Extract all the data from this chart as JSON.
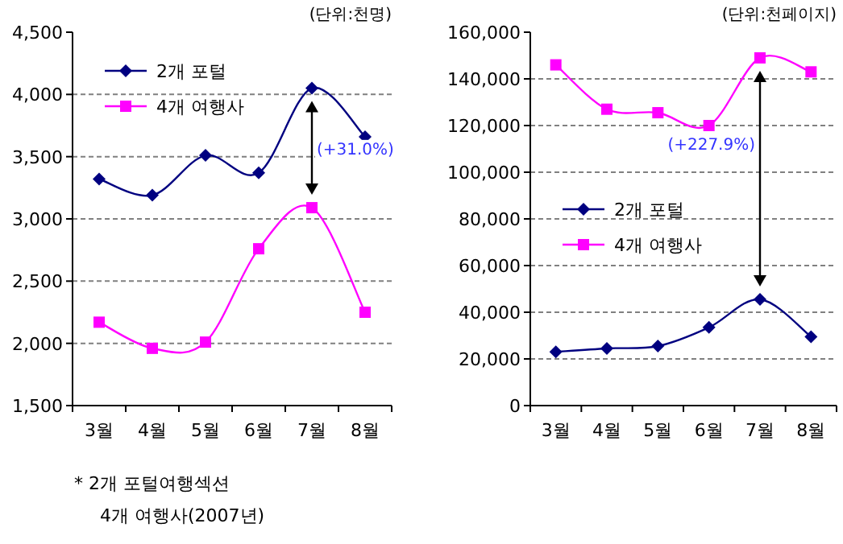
{
  "chart_data": [
    {
      "type": "line",
      "subtitle": "(단위:천명)",
      "categories": [
        "3월",
        "4월",
        "5월",
        "6월",
        "7월",
        "8월"
      ],
      "series": [
        {
          "name": "2개 포털",
          "color": "#000080",
          "marker": "diamond",
          "values": [
            3320,
            3190,
            3510,
            3370,
            4050,
            3660
          ]
        },
        {
          "name": "4개 여행사",
          "color": "#ff00ff",
          "marker": "square",
          "values": [
            2170,
            1960,
            2010,
            2760,
            3090,
            2250
          ]
        }
      ],
      "ylim": [
        1500,
        4500
      ],
      "yticks": [
        {
          "value": 1500,
          "label": "1,500"
        },
        {
          "value": 2000,
          "label": "2,000"
        },
        {
          "value": 2500,
          "label": "2,500"
        },
        {
          "value": 3000,
          "label": "3,000"
        },
        {
          "value": 3500,
          "label": "3,500"
        },
        {
          "value": 4000,
          "label": "4,000"
        },
        {
          "value": 4500,
          "label": "4,500"
        }
      ],
      "grid": "y",
      "legend": "top left",
      "annotations": [
        "(+31.0%)",
        "* 2개 포털여행섹션",
        "4개 여행사(2007년)"
      ]
    },
    {
      "type": "line",
      "subtitle": "(단위:천페이지)",
      "categories": [
        "3월",
        "4월",
        "5월",
        "6월",
        "7월",
        "8월"
      ],
      "series": [
        {
          "name": "2개 포털",
          "color": "#000080",
          "marker": "diamond",
          "values": [
            23000,
            24500,
            25500,
            33500,
            45500,
            29500
          ]
        },
        {
          "name": "4개 여행사",
          "color": "#ff00ff",
          "marker": "square",
          "values": [
            146000,
            127000,
            125500,
            120000,
            149000,
            143000
          ]
        }
      ],
      "ylim": [
        0,
        160000
      ],
      "yticks": [
        0,
        {
          "value": 20000,
          "label": "20,000"
        },
        {
          "value": 40000,
          "label": "40,000"
        },
        {
          "value": 60000,
          "label": "60,000"
        },
        {
          "value": 80000,
          "label": "80,000"
        },
        {
          "value": 100000,
          "label": "100,000"
        },
        {
          "value": 120000,
          "label": "120,000"
        },
        {
          "value": 140000,
          "label": "140,000"
        },
        {
          "value": 160000,
          "label": "160,000"
        }
      ],
      "grid": "y",
      "legend": "center left",
      "annotations": [
        "(+227.9%)"
      ]
    }
  ]
}
